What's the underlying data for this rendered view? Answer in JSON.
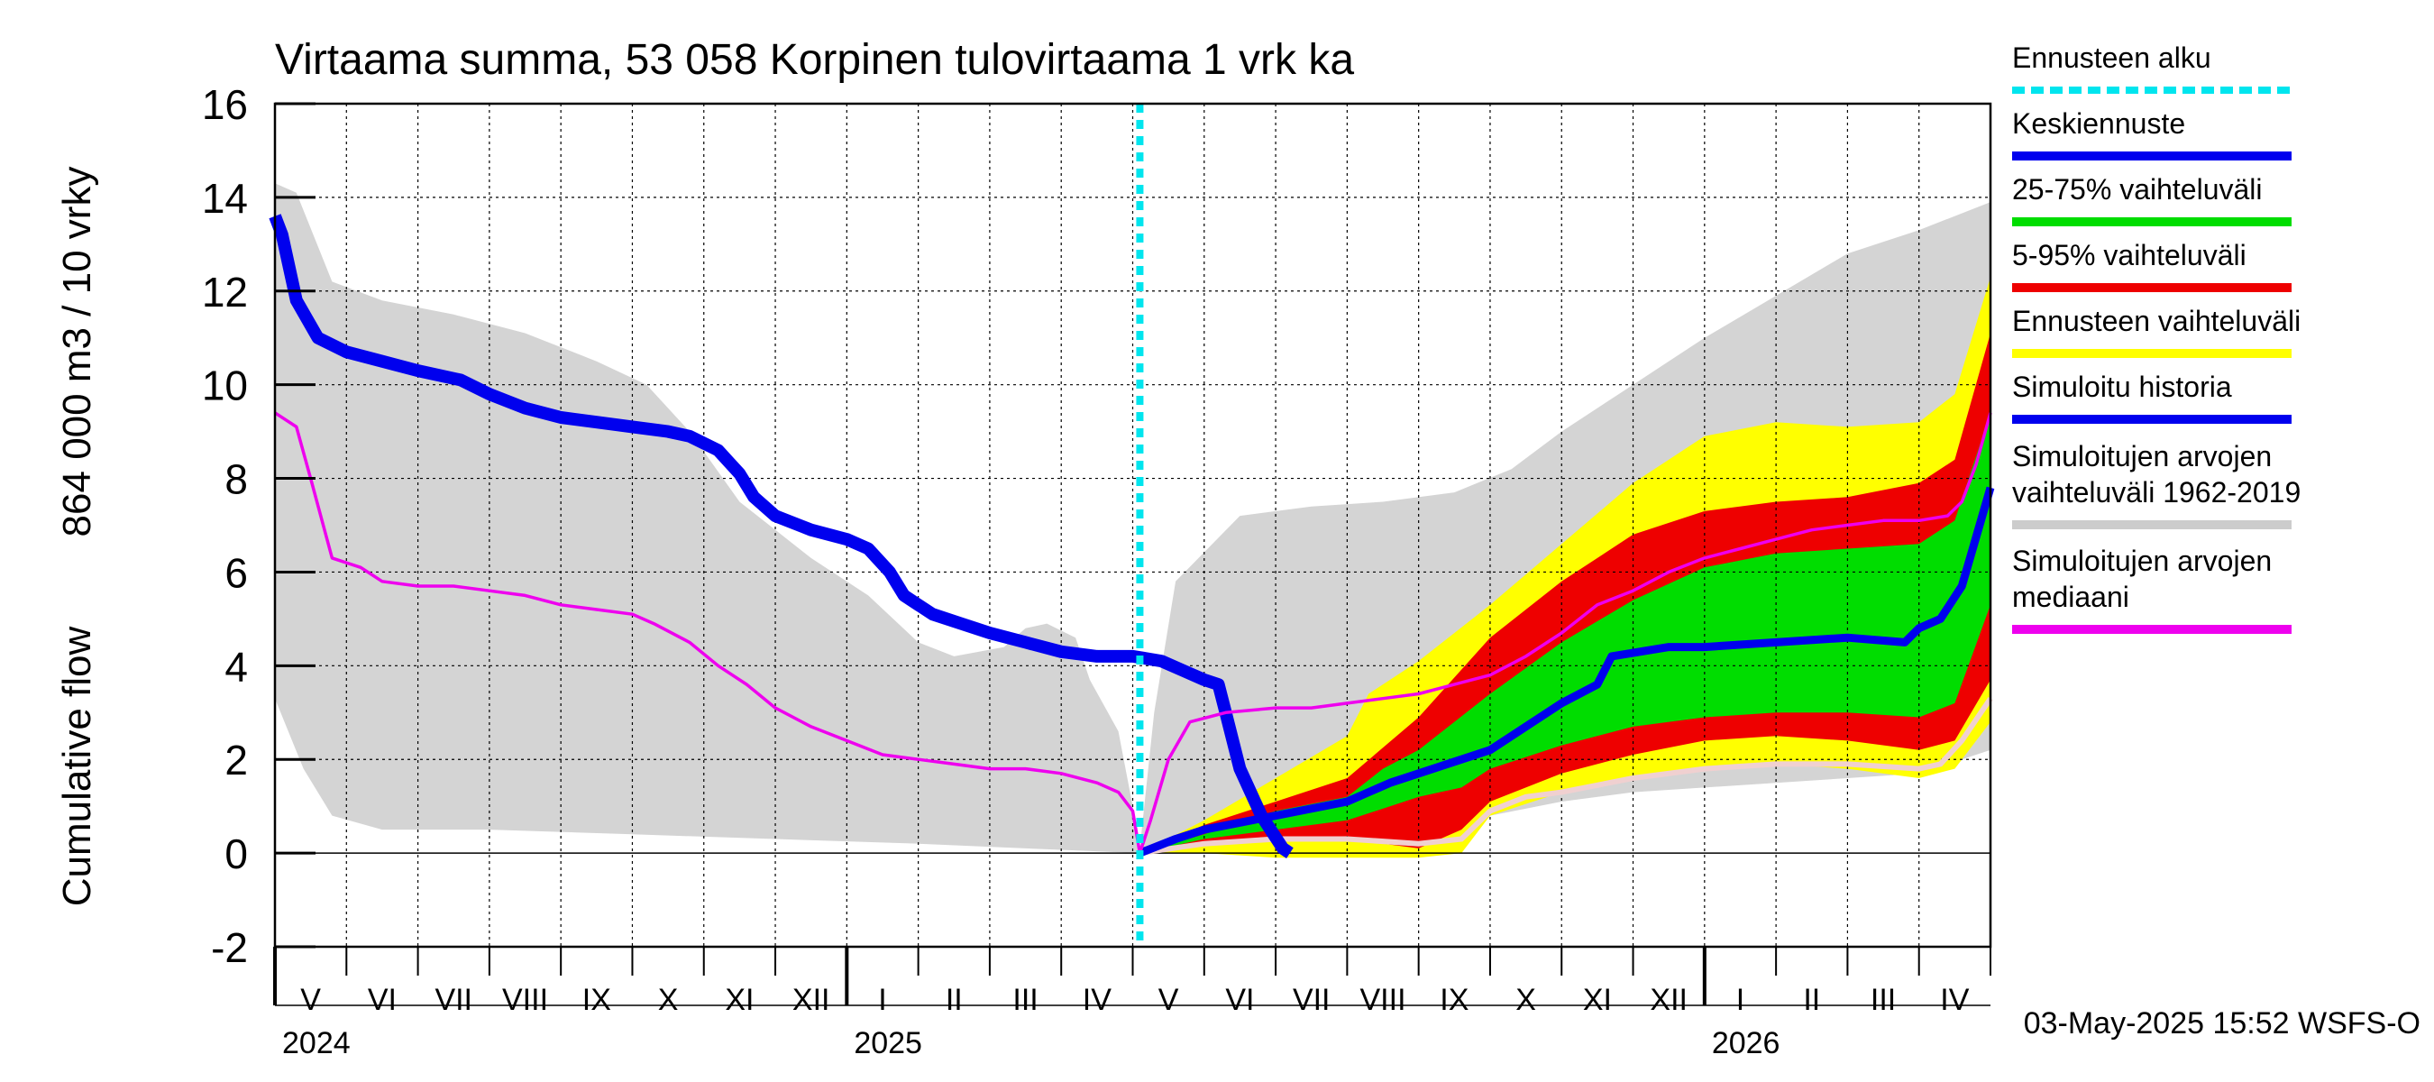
{
  "chart_data": {
    "type": "area",
    "title": "Virtaama summa, 53 058 Korpinen tulovirtaama 1 vrk ka",
    "ylabel_line1": "Cumulative flow",
    "ylabel_line2": "864 000 m3 / 10 vrky",
    "ylim": [
      -2,
      16
    ],
    "yticks": [
      -2,
      0,
      2,
      4,
      6,
      8,
      10,
      12,
      14,
      16
    ],
    "x_unit": "month index from start of May 2024",
    "xlim": [
      0,
      24
    ],
    "forecast_start": 12.1,
    "month_labels": [
      "V",
      "VI",
      "VII",
      "VIII",
      "IX",
      "X",
      "XI",
      "XII",
      "I",
      "II",
      "III",
      "IV",
      "V",
      "VI",
      "VII",
      "VIII",
      "IX",
      "X",
      "XI",
      "XII",
      "I",
      "II",
      "III",
      "IV"
    ],
    "year_labels": [
      {
        "label": "2024",
        "month_index": 0
      },
      {
        "label": "2025",
        "month_index": 8
      },
      {
        "label": "2026",
        "month_index": 20
      }
    ],
    "grid": true,
    "legend_position": "right",
    "legend": [
      {
        "label": "Ennusteen alku",
        "color": "#00e5ee",
        "style": "dotted"
      },
      {
        "label": "Keskiennuste",
        "color": "#0000ee",
        "style": "line"
      },
      {
        "label": "25-75% vaihteluväli",
        "color": "#00dd00",
        "style": "line"
      },
      {
        "label": "5-95% vaihteluväli",
        "color": "#ee0000",
        "style": "line"
      },
      {
        "label": "Ennusteen vaihteluväli",
        "color": "#ffff00",
        "style": "line"
      },
      {
        "label": "Simuloitu historia",
        "color": "#0000ee",
        "style": "line"
      },
      {
        "label": "Simuloitujen arvojen",
        "label2": "vaihteluväli 1962-2019",
        "color": "#cccccc",
        "style": "line"
      },
      {
        "label": "Simuloitujen arvojen",
        "label2": "mediaani",
        "color": "#ee00ee",
        "style": "line"
      }
    ],
    "hist_band_upper": [
      [
        0,
        14.3
      ],
      [
        0.3,
        14.1
      ],
      [
        0.8,
        12.2
      ],
      [
        1.5,
        11.8
      ],
      [
        2.5,
        11.5
      ],
      [
        3.5,
        11.1
      ],
      [
        4.5,
        10.5
      ],
      [
        5.2,
        10.0
      ],
      [
        5.8,
        9.0
      ],
      [
        6.5,
        7.5
      ],
      [
        7.5,
        6.3
      ],
      [
        8.3,
        5.5
      ],
      [
        9,
        4.5
      ],
      [
        9.5,
        4.2
      ],
      [
        10.2,
        4.4
      ],
      [
        10.5,
        4.8
      ],
      [
        10.8,
        4.9
      ],
      [
        11.2,
        4.6
      ],
      [
        11.4,
        3.7
      ],
      [
        11.8,
        2.6
      ],
      [
        12.0,
        1.0
      ],
      [
        12.1,
        0.1
      ],
      [
        12.3,
        3.0
      ],
      [
        12.6,
        5.8
      ],
      [
        13.5,
        7.2
      ],
      [
        14.5,
        7.4
      ],
      [
        15.5,
        7.5
      ],
      [
        16.5,
        7.7
      ],
      [
        17.3,
        8.2
      ],
      [
        18.0,
        9.0
      ],
      [
        19,
        10
      ],
      [
        20,
        11.0
      ],
      [
        21,
        11.9
      ],
      [
        22,
        12.8
      ],
      [
        23,
        13.3
      ],
      [
        24,
        13.9
      ]
    ],
    "hist_band_lower": [
      [
        0,
        3.3
      ],
      [
        0.4,
        1.8
      ],
      [
        0.8,
        0.8
      ],
      [
        1.5,
        0.5
      ],
      [
        3,
        0.5
      ],
      [
        5,
        0.4
      ],
      [
        7,
        0.3
      ],
      [
        9,
        0.2
      ],
      [
        10.5,
        0.1
      ],
      [
        12.1,
        0.0
      ],
      [
        13,
        0.1
      ],
      [
        14.5,
        0.3
      ],
      [
        16,
        0.5
      ],
      [
        17,
        0.8
      ],
      [
        18,
        1.1
      ],
      [
        19,
        1.3
      ],
      [
        20,
        1.4
      ],
      [
        21,
        1.5
      ],
      [
        22,
        1.6
      ],
      [
        23,
        1.7
      ],
      [
        23.6,
        2.0
      ],
      [
        24,
        2.2
      ]
    ],
    "forecast_outer_upper": [
      [
        12.1,
        0.0
      ],
      [
        13,
        0.7
      ],
      [
        14,
        1.6
      ],
      [
        15,
        2.5
      ],
      [
        15.3,
        3.4
      ],
      [
        16,
        4.1
      ],
      [
        17,
        5.3
      ],
      [
        18,
        6.6
      ],
      [
        19,
        7.9
      ],
      [
        20,
        8.9
      ],
      [
        21,
        9.2
      ],
      [
        22,
        9.1
      ],
      [
        23,
        9.2
      ],
      [
        23.5,
        9.8
      ],
      [
        24,
        12.3
      ]
    ],
    "forecast_outer_lower": [
      [
        12.1,
        0.0
      ],
      [
        13,
        0.0
      ],
      [
        14,
        -0.1
      ],
      [
        15,
        -0.1
      ],
      [
        16,
        -0.1
      ],
      [
        16.6,
        0.0
      ],
      [
        17,
        0.8
      ],
      [
        18,
        1.3
      ],
      [
        19,
        1.6
      ],
      [
        20,
        1.8
      ],
      [
        21,
        1.9
      ],
      [
        22,
        1.8
      ],
      [
        23,
        1.6
      ],
      [
        23.5,
        1.8
      ],
      [
        24,
        2.8
      ]
    ],
    "forecast_p95": [
      [
        12.1,
        0.0
      ],
      [
        13,
        0.6
      ],
      [
        14,
        1.1
      ],
      [
        15,
        1.6
      ],
      [
        16,
        2.9
      ],
      [
        17,
        4.6
      ],
      [
        18,
        5.8
      ],
      [
        19,
        6.8
      ],
      [
        20,
        7.3
      ],
      [
        21,
        7.5
      ],
      [
        22,
        7.6
      ],
      [
        23,
        7.9
      ],
      [
        23.5,
        8.4
      ],
      [
        24,
        11.1
      ]
    ],
    "forecast_p05": [
      [
        12.1,
        0.0
      ],
      [
        13,
        0.2
      ],
      [
        14,
        0.3
      ],
      [
        15,
        0.3
      ],
      [
        16,
        0.1
      ],
      [
        16.6,
        0.5
      ],
      [
        17,
        1.1
      ],
      [
        18,
        1.7
      ],
      [
        19,
        2.1
      ],
      [
        20,
        2.4
      ],
      [
        21,
        2.5
      ],
      [
        22,
        2.4
      ],
      [
        23,
        2.2
      ],
      [
        23.5,
        2.4
      ],
      [
        24,
        3.7
      ]
    ],
    "forecast_p75": [
      [
        12.1,
        0.0
      ],
      [
        13,
        0.4
      ],
      [
        14,
        0.9
      ],
      [
        15,
        1.2
      ],
      [
        15.5,
        1.8
      ],
      [
        16,
        2.2
      ],
      [
        17,
        3.4
      ],
      [
        18,
        4.5
      ],
      [
        19,
        5.4
      ],
      [
        20,
        6.1
      ],
      [
        21,
        6.4
      ],
      [
        22,
        6.5
      ],
      [
        23,
        6.6
      ],
      [
        23.5,
        7.1
      ],
      [
        24,
        9.4
      ]
    ],
    "forecast_p25": [
      [
        12.1,
        0.0
      ],
      [
        13,
        0.3
      ],
      [
        14,
        0.5
      ],
      [
        15,
        0.7
      ],
      [
        16,
        1.2
      ],
      [
        16.6,
        1.4
      ],
      [
        17,
        1.8
      ],
      [
        18,
        2.3
      ],
      [
        19,
        2.7
      ],
      [
        20,
        2.9
      ],
      [
        21,
        3.0
      ],
      [
        22,
        3.0
      ],
      [
        23,
        2.9
      ],
      [
        23.5,
        3.2
      ],
      [
        24,
        5.3
      ]
    ],
    "forecast_median": [
      [
        12.1,
        0.0
      ],
      [
        12.6,
        0.3
      ],
      [
        13,
        0.5
      ],
      [
        14,
        0.8
      ],
      [
        15,
        1.1
      ],
      [
        15.6,
        1.5
      ],
      [
        16,
        1.7
      ],
      [
        17,
        2.2
      ],
      [
        17.5,
        2.7
      ],
      [
        18,
        3.2
      ],
      [
        18.5,
        3.6
      ],
      [
        18.7,
        4.2
      ],
      [
        19.5,
        4.4
      ],
      [
        20,
        4.4
      ],
      [
        21,
        4.5
      ],
      [
        22,
        4.6
      ],
      [
        22.8,
        4.5
      ],
      [
        23,
        4.8
      ],
      [
        23.3,
        5.0
      ],
      [
        23.6,
        5.7
      ],
      [
        24,
        7.8
      ]
    ],
    "simulated_history": [
      [
        0,
        13.6
      ],
      [
        0.1,
        13.2
      ],
      [
        0.3,
        11.8
      ],
      [
        0.6,
        11.0
      ],
      [
        1,
        10.7
      ],
      [
        1.5,
        10.5
      ],
      [
        2,
        10.3
      ],
      [
        2.6,
        10.1
      ],
      [
        3,
        9.8
      ],
      [
        3.5,
        9.5
      ],
      [
        4,
        9.3
      ],
      [
        4.5,
        9.2
      ],
      [
        5,
        9.1
      ],
      [
        5.5,
        9.0
      ],
      [
        5.8,
        8.9
      ],
      [
        6.2,
        8.6
      ],
      [
        6.5,
        8.1
      ],
      [
        6.7,
        7.6
      ],
      [
        7,
        7.2
      ],
      [
        7.5,
        6.9
      ],
      [
        8,
        6.7
      ],
      [
        8.3,
        6.5
      ],
      [
        8.6,
        6.0
      ],
      [
        8.8,
        5.5
      ],
      [
        9.2,
        5.1
      ],
      [
        9.6,
        4.9
      ],
      [
        10,
        4.7
      ],
      [
        10.5,
        4.5
      ],
      [
        11,
        4.3
      ],
      [
        11.5,
        4.2
      ],
      [
        12.0,
        4.2
      ],
      [
        12.4,
        4.1
      ],
      [
        12.7,
        3.9
      ],
      [
        13,
        3.7
      ],
      [
        13.2,
        3.6
      ],
      [
        13.3,
        3.0
      ],
      [
        13.5,
        1.8
      ],
      [
        13.8,
        0.8
      ],
      [
        14.1,
        0.1
      ],
      [
        14.2,
        0.0
      ]
    ],
    "sim_median": [
      [
        0,
        9.4
      ],
      [
        0.3,
        9.1
      ],
      [
        0.5,
        8.0
      ],
      [
        0.8,
        6.3
      ],
      [
        1.2,
        6.1
      ],
      [
        1.5,
        5.8
      ],
      [
        2,
        5.7
      ],
      [
        2.5,
        5.7
      ],
      [
        3,
        5.6
      ],
      [
        3.5,
        5.5
      ],
      [
        4,
        5.3
      ],
      [
        4.5,
        5.2
      ],
      [
        5,
        5.1
      ],
      [
        5.3,
        4.9
      ],
      [
        5.8,
        4.5
      ],
      [
        6.2,
        4.0
      ],
      [
        6.6,
        3.6
      ],
      [
        7,
        3.1
      ],
      [
        7.5,
        2.7
      ],
      [
        8,
        2.4
      ],
      [
        8.5,
        2.1
      ],
      [
        9,
        2.0
      ],
      [
        9.5,
        1.9
      ],
      [
        10,
        1.8
      ],
      [
        10.5,
        1.8
      ],
      [
        11,
        1.7
      ],
      [
        11.5,
        1.5
      ],
      [
        11.8,
        1.3
      ],
      [
        12,
        0.9
      ],
      [
        12.1,
        0.0
      ],
      [
        12.25,
        0.7
      ],
      [
        12.5,
        2.0
      ],
      [
        12.8,
        2.8
      ],
      [
        13.3,
        3.0
      ],
      [
        14,
        3.1
      ],
      [
        14.5,
        3.1
      ],
      [
        15,
        3.2
      ],
      [
        15.5,
        3.3
      ],
      [
        16,
        3.4
      ],
      [
        16.5,
        3.6
      ],
      [
        17,
        3.8
      ],
      [
        17.5,
        4.2
      ],
      [
        18,
        4.7
      ],
      [
        18.5,
        5.3
      ],
      [
        19,
        5.6
      ],
      [
        19.5,
        6.0
      ],
      [
        20,
        6.3
      ],
      [
        20.5,
        6.5
      ],
      [
        21,
        6.7
      ],
      [
        21.5,
        6.9
      ],
      [
        22,
        7.0
      ],
      [
        22.5,
        7.1
      ],
      [
        23,
        7.1
      ],
      [
        23.4,
        7.2
      ],
      [
        23.6,
        7.5
      ],
      [
        23.8,
        8.3
      ],
      [
        24,
        9.4
      ]
    ],
    "sim_lower_white": [
      [
        12.1,
        0.0
      ],
      [
        13,
        0.2
      ],
      [
        14,
        0.3
      ],
      [
        15,
        0.3
      ],
      [
        16,
        0.2
      ],
      [
        16.6,
        0.3
      ],
      [
        17,
        0.9
      ],
      [
        17.5,
        1.2
      ],
      [
        18,
        1.3
      ],
      [
        19,
        1.6
      ],
      [
        20,
        1.8
      ],
      [
        21,
        1.9
      ],
      [
        22,
        1.9
      ],
      [
        23,
        1.8
      ],
      [
        23.3,
        1.9
      ],
      [
        23.6,
        2.4
      ],
      [
        24,
        3.3
      ]
    ],
    "timestamp": "03-May-2025 15:52 WSFS-O"
  }
}
